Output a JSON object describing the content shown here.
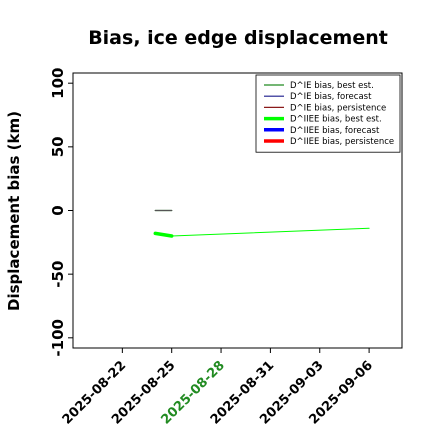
{
  "chart_data": {
    "type": "line",
    "title": "Bias, ice edge displacement",
    "xlabel": "",
    "ylabel": "Displacement bias (km)",
    "xlim": [
      "2025-08-19",
      "2025-09-08"
    ],
    "ylim": [
      -108,
      108
    ],
    "yticks": [
      100,
      50,
      0,
      -50,
      -100
    ],
    "xticks": [
      {
        "date": "2025-08-22",
        "label": "2025-08-22",
        "color": "#000000"
      },
      {
        "date": "2025-08-25",
        "label": "2025-08-25",
        "color": "#000000"
      },
      {
        "date": "2025-08-28",
        "label": "2025-08-28",
        "color": "#228b22"
      },
      {
        "date": "2025-08-31",
        "label": "2025-08-31",
        "color": "#000000"
      },
      {
        "date": "2025-09-03",
        "label": "2025-09-03",
        "color": "#000000"
      },
      {
        "date": "2025-09-06",
        "label": "2025-09-06",
        "color": "#000000"
      }
    ],
    "legend_position": "top-right",
    "series": [
      {
        "name": "D^IE bias, best est.",
        "color": "#228b22",
        "width": 1.2,
        "points": [
          [
            "2025-08-24",
            0
          ],
          [
            "2025-08-25",
            0
          ]
        ]
      },
      {
        "name": "D^IE bias, forecast",
        "color": "#1a1a8c",
        "width": 1.2,
        "points": []
      },
      {
        "name": "D^IE bias, persistence",
        "color": "#8b1a1a",
        "width": 1.2,
        "points": []
      },
      {
        "name": "D^IIEE bias, best est.",
        "color": "#00ff00",
        "width": 3.5,
        "points": [
          [
            "2025-08-24",
            -18
          ],
          [
            "2025-08-25",
            -20
          ]
        ]
      },
      {
        "name": "D^IIEE bias, forecast",
        "color": "#0000ff",
        "width": 3.5,
        "points": []
      },
      {
        "name": "D^IIEE bias, persistence",
        "color": "#ff0000",
        "width": 3.5,
        "points": []
      },
      {
        "name": "",
        "color": "#00ff00",
        "width": 1,
        "points": [
          [
            "2025-08-25",
            -20
          ],
          [
            "2025-09-06",
            -14
          ]
        ]
      },
      {
        "name": "",
        "color": "#555555",
        "width": 1.2,
        "points": [
          [
            "2025-08-24",
            0
          ],
          [
            "2025-08-25",
            0
          ]
        ]
      }
    ]
  }
}
